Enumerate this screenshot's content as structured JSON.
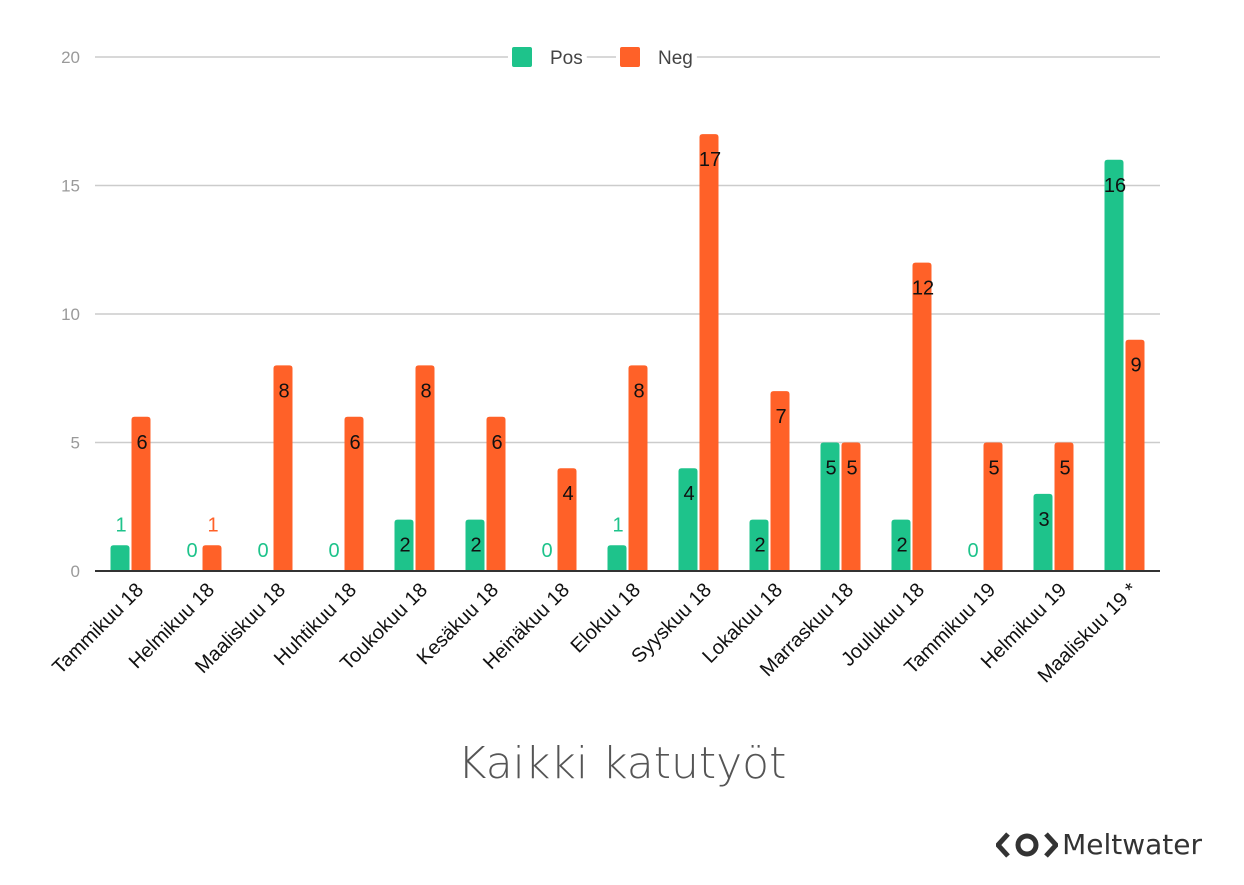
{
  "chart_data": {
    "type": "bar",
    "title": "Kaikki katutyöt",
    "categories": [
      "Tammikuu 18",
      "Helmikuu 18",
      "Maaliskuu 18",
      "Huhtikuu 18",
      "Toukokuu 18",
      "Kesäkuu 18",
      "Heinäkuu 18",
      "Elokuu 18",
      "Syyskuu 18",
      "Lokakuu 18",
      "Marraskuu 18",
      "Joulukuu 18",
      "Tammikuu 19",
      "Helmikuu 19",
      "Maaliskuu 19 *"
    ],
    "series": [
      {
        "name": "Pos",
        "color": "#1ec38b",
        "values": [
          1,
          0,
          0,
          0,
          2,
          2,
          0,
          1,
          4,
          2,
          5,
          2,
          0,
          3,
          16
        ]
      },
      {
        "name": "Neg",
        "color": "#ff6128",
        "values": [
          6,
          1,
          8,
          6,
          8,
          6,
          4,
          8,
          17,
          7,
          5,
          12,
          5,
          5,
          9
        ]
      }
    ],
    "ylim": [
      0,
      20
    ],
    "yticks": [
      0,
      5,
      10,
      15,
      20
    ],
    "grid": true,
    "legend": "top-center"
  },
  "brand": {
    "name": "Meltwater",
    "icon": "meltwater-logo-icon"
  }
}
